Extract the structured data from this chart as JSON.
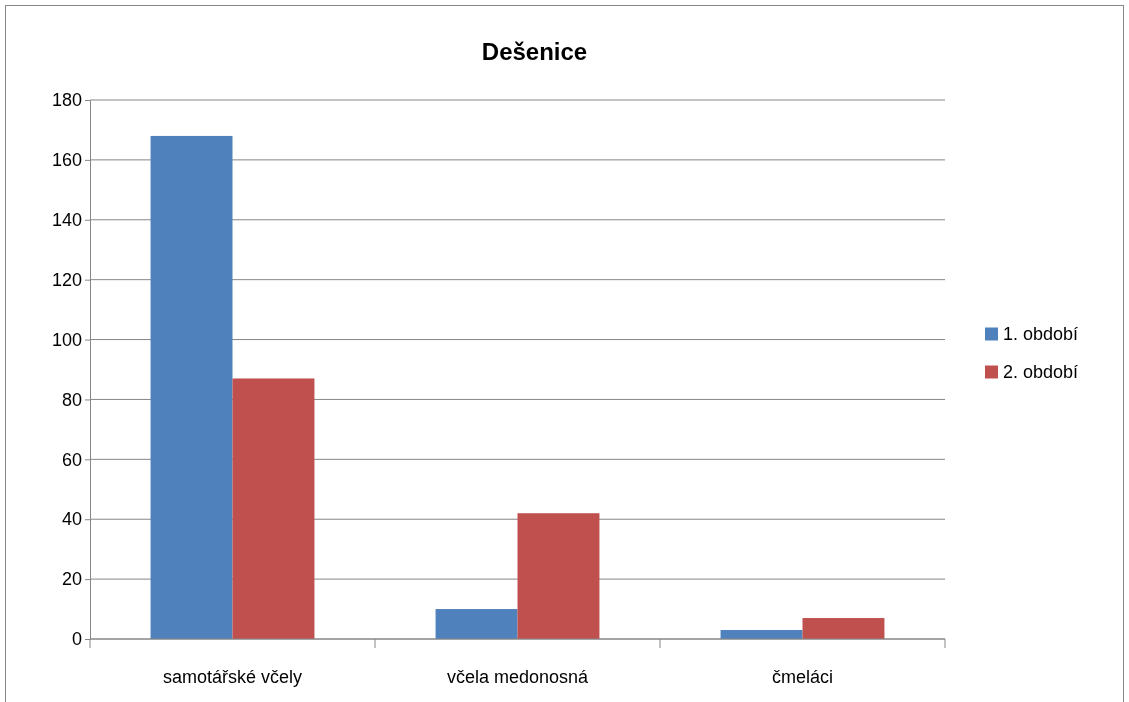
{
  "chart_data": {
    "type": "bar",
    "title": "Dešenice",
    "categories": [
      "samotářské včely",
      "včela medonosná",
      "čmeláci"
    ],
    "series": [
      {
        "name": "1. období",
        "color": "#4f81bd",
        "values": [
          168,
          10,
          3
        ]
      },
      {
        "name": "2. období",
        "color": "#c0504d",
        "values": [
          87,
          42,
          7
        ]
      }
    ],
    "ylim": [
      0,
      180
    ],
    "yticks": [
      0,
      20,
      40,
      60,
      80,
      100,
      120,
      140,
      160,
      180
    ],
    "grid": "y",
    "legend": "right"
  }
}
